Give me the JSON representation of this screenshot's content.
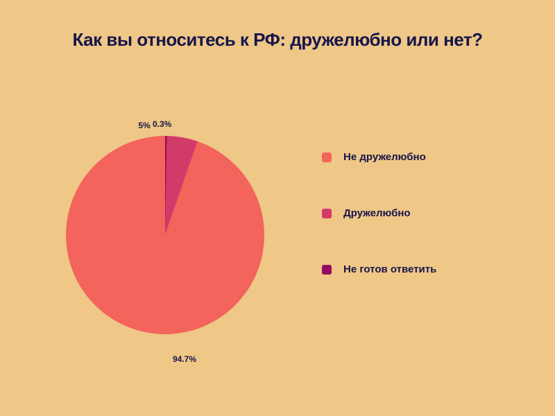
{
  "chart_data": {
    "type": "pie",
    "title": "Как вы относитесь к РФ: дружелюбно или нет?",
    "legend_position": "right",
    "slices": [
      {
        "label": "Не дружелюбно",
        "value": 94.7,
        "display": "94.7%",
        "color": "#F2645C"
      },
      {
        "label": "Дружелюбно",
        "value": 5,
        "display": "5%",
        "color": "#D23A6A"
      },
      {
        "label": "Не готов ответить",
        "value": 0.3,
        "display": "0.3%",
        "color": "#950D63"
      }
    ]
  }
}
